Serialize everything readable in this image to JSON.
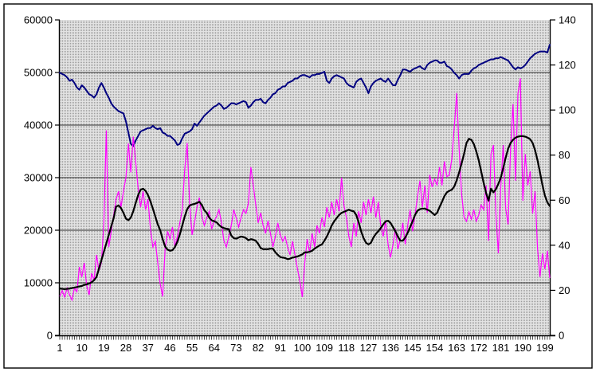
{
  "chart_data": {
    "type": "line",
    "title": "",
    "xlabel": "",
    "ylabel_left": "",
    "ylabel_right": "",
    "n_points": 201,
    "x_tick_labels": [
      "1",
      "10",
      "19",
      "28",
      "37",
      "46",
      "55",
      "64",
      "73",
      "82",
      "91",
      "100",
      "109",
      "118",
      "127",
      "136",
      "145",
      "154",
      "163",
      "172",
      "181",
      "190",
      "199"
    ],
    "left_axis": {
      "min": 0,
      "max": 60000,
      "tick_step": 10000,
      "tick_labels": [
        "0",
        "10000",
        "20000",
        "30000",
        "40000",
        "50000",
        "60000"
      ]
    },
    "right_axis": {
      "min": 0,
      "max": 140,
      "tick_step": 20,
      "tick_labels": [
        "0",
        "20",
        "40",
        "60",
        "80",
        "100",
        "120",
        "140"
      ]
    },
    "grid": {
      "horizontal": true,
      "values": [
        10000,
        20000,
        30000,
        40000,
        50000
      ],
      "color": "#2e2e2e"
    },
    "plot_background": {
      "style": "gray-dot-pattern",
      "base": "#e3e3e3",
      "dot": "#9e9e9e"
    },
    "legend": "none",
    "series": [
      {
        "name": "blue-line",
        "color": "#000080",
        "stroke_width": 2,
        "axis": "right",
        "values": [
          116.5,
          116,
          115.5,
          114.5,
          113,
          113.5,
          112,
          110,
          109,
          111,
          110,
          108.5,
          107,
          106.5,
          105.5,
          107,
          110,
          112,
          110,
          107.5,
          105.5,
          103,
          101.5,
          100.5,
          99.5,
          99,
          98.5,
          95,
          90,
          85,
          84,
          86.5,
          88.5,
          90.5,
          91,
          91.5,
          92,
          92,
          93,
          92,
          91.5,
          92,
          90,
          89.5,
          88.5,
          88.5,
          87.5,
          86.5,
          84.5,
          85,
          87.5,
          89.5,
          90,
          90.5,
          91.5,
          94,
          93,
          94.5,
          96,
          97.5,
          98.5,
          99.5,
          100.5,
          101.5,
          102,
          103,
          102,
          100.5,
          101,
          102,
          103,
          103,
          102.5,
          103,
          103.5,
          104,
          103.5,
          101,
          102,
          103.5,
          104.5,
          104.5,
          105,
          103.5,
          103,
          104.5,
          105.5,
          107,
          107.5,
          109,
          109.5,
          110.5,
          110.5,
          112,
          112.5,
          113,
          114,
          114,
          115,
          115.5,
          115.5,
          115,
          114.5,
          115.5,
          115.5,
          116,
          116,
          116.5,
          117,
          113,
          112,
          114,
          115,
          115.5,
          115,
          114.5,
          114,
          112,
          111,
          110.5,
          110,
          112.5,
          113.5,
          114,
          112,
          110,
          107.5,
          110.5,
          112,
          113,
          113.5,
          114,
          113,
          112.5,
          114,
          112.5,
          111,
          111,
          113.5,
          115.5,
          118,
          118,
          117.5,
          117,
          118,
          118.5,
          119,
          119.5,
          118.5,
          118,
          120,
          121,
          121.5,
          122,
          122,
          121,
          121,
          121.5,
          119.5,
          119,
          118,
          116.5,
          115.5,
          114,
          115.5,
          116,
          116,
          116,
          117.5,
          118.5,
          119,
          120,
          120.5,
          121,
          121.5,
          122,
          122.5,
          122.5,
          123,
          123,
          123.5,
          123,
          122.5,
          122,
          120.5,
          119,
          118,
          119,
          118.5,
          119,
          120,
          121.5,
          123,
          124,
          125,
          125.5,
          126,
          126,
          126,
          125.5,
          129
        ]
      },
      {
        "name": "magenta-line",
        "color": "#ff00ff",
        "stroke_width": 1.2,
        "axis": "left",
        "values": [
          7400,
          8500,
          7300,
          9000,
          7700,
          6700,
          9000,
          8300,
          13000,
          11100,
          13800,
          9400,
          7700,
          11800,
          10500,
          15300,
          12300,
          13800,
          21400,
          39000,
          16800,
          19800,
          22900,
          25900,
          27400,
          24400,
          27400,
          30000,
          36500,
          31000,
          37800,
          33000,
          27900,
          24400,
          27400,
          23900,
          25900,
          20300,
          16800,
          17900,
          13800,
          9800,
          7400,
          16400,
          19800,
          18300,
          20600,
          16800,
          18800,
          21400,
          23900,
          31500,
          36600,
          25200,
          19100,
          21400,
          24400,
          26200,
          22600,
          20900,
          22400,
          23600,
          20200,
          21700,
          22600,
          23900,
          21400,
          18000,
          16800,
          18800,
          20900,
          23900,
          22400,
          20600,
          22400,
          23900,
          23200,
          25200,
          32000,
          28500,
          24800,
          21400,
          23300,
          20900,
          19400,
          21800,
          19400,
          16800,
          18800,
          21400,
          19100,
          17900,
          18800,
          16800,
          15300,
          17900,
          15300,
          12700,
          10300,
          7300,
          13800,
          18300,
          15800,
          19400,
          16800,
          20900,
          19400,
          22400,
          20600,
          24400,
          22400,
          25400,
          22900,
          25900,
          23600,
          30000,
          24700,
          22400,
          18800,
          16800,
          21400,
          18800,
          23600,
          21400,
          25400,
          22900,
          25900,
          23300,
          26400,
          22400,
          25400,
          20900,
          18800,
          21800,
          17300,
          14800,
          17300,
          20300,
          16400,
          18300,
          21400,
          17300,
          20900,
          23900,
          19800,
          22900,
          26400,
          29400,
          24400,
          28500,
          23300,
          30500,
          28200,
          29700,
          28600,
          32000,
          28500,
          33100,
          30200,
          30500,
          33500,
          39500,
          46100,
          35500,
          27000,
          22500,
          21700,
          23500,
          22100,
          23900,
          21700,
          22900,
          24800,
          23900,
          28500,
          18000,
          34500,
          36200,
          23200,
          15600,
          28200,
          36200,
          24100,
          21100,
          35800,
          44000,
          29400,
          46000,
          48900,
          25600,
          34500,
          28500,
          31200,
          23200,
          27400,
          16500,
          11100,
          15600,
          12600,
          16100,
          10900
        ]
      },
      {
        "name": "black-line",
        "color": "#000000",
        "stroke_width": 2.2,
        "axis": "left",
        "values": [
          8900,
          8850,
          8800,
          8850,
          8900,
          9000,
          9100,
          9200,
          9300,
          9400,
          9600,
          9700,
          9850,
          10100,
          10500,
          11100,
          12700,
          14300,
          15900,
          17500,
          19100,
          20700,
          22300,
          24500,
          24700,
          24200,
          23300,
          22200,
          21900,
          22400,
          23600,
          25200,
          26700,
          27700,
          27900,
          27500,
          26700,
          25500,
          24100,
          22600,
          21100,
          20000,
          18300,
          16900,
          16300,
          16100,
          16200,
          16800,
          17800,
          19200,
          20900,
          22600,
          24000,
          24700,
          24900,
          25000,
          25200,
          25400,
          24800,
          23800,
          23300,
          22400,
          21900,
          21700,
          21500,
          21000,
          20600,
          20400,
          20300,
          20200,
          19000,
          18500,
          18400,
          18600,
          18800,
          18700,
          18500,
          18100,
          18300,
          18200,
          18000,
          17400,
          16600,
          16400,
          16400,
          16400,
          16500,
          16500,
          15800,
          15300,
          14900,
          14800,
          14700,
          14500,
          14600,
          14800,
          14900,
          15000,
          15200,
          15400,
          15800,
          15800,
          15900,
          16100,
          16500,
          16800,
          17100,
          17300,
          18000,
          18800,
          19800,
          20900,
          21700,
          22300,
          22900,
          23300,
          23500,
          23700,
          23900,
          23700,
          23600,
          22900,
          21500,
          19800,
          18500,
          17600,
          17300,
          17600,
          18600,
          19300,
          19800,
          20400,
          21100,
          21700,
          21800,
          21400,
          20600,
          19800,
          18800,
          18000,
          18000,
          18600,
          19500,
          20600,
          21700,
          22900,
          23700,
          24000,
          24100,
          24100,
          23900,
          23700,
          23300,
          22900,
          23300,
          24400,
          25400,
          26500,
          27200,
          27500,
          27700,
          28300,
          29500,
          31000,
          32700,
          34500,
          36600,
          37400,
          37200,
          36400,
          35000,
          33300,
          31200,
          29000,
          27100,
          25600,
          27900,
          27200,
          27800,
          28800,
          30000,
          31800,
          33800,
          35500,
          36600,
          37200,
          37600,
          37800,
          37900,
          37900,
          37800,
          37600,
          37300,
          36600,
          35200,
          33300,
          31000,
          28600,
          26600,
          25300,
          24600
        ]
      }
    ]
  }
}
